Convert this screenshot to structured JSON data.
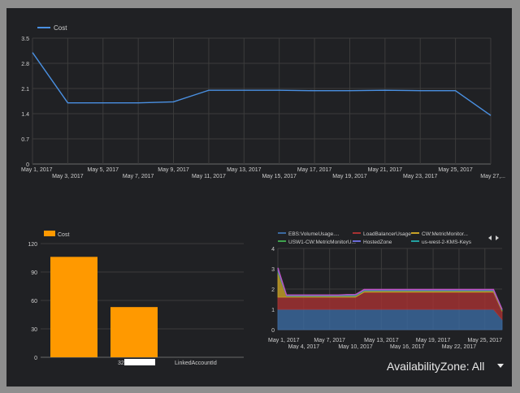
{
  "chart_data": [
    {
      "type": "line",
      "series": [
        {
          "name": "Cost",
          "color": "#4a90e2",
          "x": [
            1,
            3,
            5,
            7,
            9,
            11,
            13,
            15,
            17,
            19,
            21,
            23,
            25,
            27
          ],
          "y": [
            3.1,
            1.7,
            1.7,
            1.7,
            1.73,
            2.05,
            2.05,
            2.05,
            2.04,
            2.04,
            2.05,
            2.04,
            2.04,
            1.35
          ]
        }
      ],
      "x_tick_labels": [
        {
          "x": 1,
          "label": "May 1, 2017"
        },
        {
          "x": 3,
          "label": "May 3, 2017"
        },
        {
          "x": 5,
          "label": "May 5, 2017"
        },
        {
          "x": 7,
          "label": "May 7, 2017"
        },
        {
          "x": 9,
          "label": "May 9, 2017"
        },
        {
          "x": 11,
          "label": "May 11, 2017"
        },
        {
          "x": 13,
          "label": "May 13, 2017"
        },
        {
          "x": 15,
          "label": "May 15, 2017"
        },
        {
          "x": 17,
          "label": "May 17, 2017"
        },
        {
          "x": 19,
          "label": "May 19, 2017"
        },
        {
          "x": 21,
          "label": "May 21, 2017"
        },
        {
          "x": 23,
          "label": "May 23, 2017"
        },
        {
          "x": 25,
          "label": "May 25, 2017"
        },
        {
          "x": 27,
          "label": "May 27,..."
        }
      ],
      "y_ticks": [
        "0",
        "0.7",
        "1.4",
        "2.1",
        "2.8",
        "3.5"
      ],
      "y_tick_values": [
        0,
        0.7,
        1.4,
        2.1,
        2.8,
        3.5
      ],
      "xlim": [
        1,
        27
      ],
      "ylim": [
        0,
        3.5
      ],
      "grid": true,
      "legend": "top-left"
    },
    {
      "type": "bar",
      "categories": [
        "32",
        "LinkedAccountId"
      ],
      "series": [
        {
          "name": "Cost",
          "color": "#ff9900",
          "values": [
            106,
            53
          ]
        }
      ],
      "y_ticks": [
        "0",
        "30",
        "60",
        "90",
        "120"
      ],
      "y_tick_values": [
        0,
        30,
        60,
        90,
        120
      ],
      "ylim": [
        0,
        120
      ],
      "grid": true,
      "legend": "top-left"
    },
    {
      "type": "area",
      "stacked": true,
      "x": [
        1,
        2,
        3,
        4,
        5,
        6,
        7,
        8,
        9,
        10,
        11,
        12,
        13,
        14,
        15,
        16,
        17,
        18,
        19,
        20,
        21,
        22,
        23,
        24,
        25,
        26,
        27
      ],
      "series": [
        {
          "name": "EBS:VolumeUsage....",
          "color": "#3b6aa0",
          "values": [
            1,
            1,
            1,
            1,
            1,
            1,
            1,
            1,
            1,
            1,
            1,
            1,
            1,
            1,
            1,
            1,
            1,
            1,
            1,
            1,
            1,
            1,
            1,
            1,
            1,
            1,
            0.5
          ]
        },
        {
          "name": "LoadBalancerUsage",
          "color": "#a83232",
          "values": [
            0.6,
            0.6,
            0.6,
            0.6,
            0.6,
            0.6,
            0.6,
            0.6,
            0.6,
            0.6,
            0.85,
            0.85,
            0.85,
            0.85,
            0.85,
            0.85,
            0.85,
            0.85,
            0.85,
            0.85,
            0.85,
            0.85,
            0.85,
            0.85,
            0.85,
            0.85,
            0.4
          ]
        },
        {
          "name": "CW:MetricMonitor...",
          "color": "#c9a227",
          "values": [
            1.2,
            0.05,
            0.05,
            0.05,
            0.05,
            0.05,
            0.05,
            0.05,
            0.05,
            0.05,
            0.05,
            0.05,
            0.05,
            0.05,
            0.05,
            0.05,
            0.05,
            0.05,
            0.05,
            0.05,
            0.05,
            0.05,
            0.05,
            0.05,
            0.05,
            0.05,
            0.04
          ]
        },
        {
          "name": "USW1-CW:MetricMonitorU...",
          "color": "#3fa34d",
          "values": [
            0.1,
            0.02,
            0.02,
            0.02,
            0.02,
            0.02,
            0.02,
            0.02,
            0.03,
            0.03,
            0.03,
            0.03,
            0.03,
            0.03,
            0.03,
            0.03,
            0.03,
            0.03,
            0.03,
            0.03,
            0.03,
            0.03,
            0.03,
            0.03,
            0.03,
            0.03,
            0.02
          ]
        },
        {
          "name": "HostedZone",
          "color": "#6a6ad6",
          "values": [
            0.1,
            0.02,
            0.02,
            0.02,
            0.02,
            0.02,
            0.02,
            0.02,
            0.03,
            0.03,
            0.03,
            0.03,
            0.03,
            0.03,
            0.03,
            0.03,
            0.03,
            0.03,
            0.03,
            0.03,
            0.03,
            0.03,
            0.03,
            0.03,
            0.03,
            0.03,
            0.02
          ]
        },
        {
          "name": "us-west-2-KMS-Keys",
          "color": "#23a0a0",
          "values": [
            0.05,
            0.02,
            0.02,
            0.02,
            0.02,
            0.02,
            0.02,
            0.02,
            0.02,
            0.02,
            0.02,
            0.02,
            0.02,
            0.02,
            0.02,
            0.02,
            0.02,
            0.02,
            0.02,
            0.02,
            0.02,
            0.02,
            0.02,
            0.02,
            0.02,
            0.02,
            0.02
          ]
        }
      ],
      "top_line_color": "#c052c0",
      "x_tick_labels": [
        {
          "x": 1,
          "label": "May 1, 2017"
        },
        {
          "x": 4,
          "label": "May 4, 2017"
        },
        {
          "x": 7,
          "label": "May 7, 2017"
        },
        {
          "x": 10,
          "label": "May 10, 2017"
        },
        {
          "x": 13,
          "label": "May 13, 2017"
        },
        {
          "x": 16,
          "label": "May 16, 2017"
        },
        {
          "x": 19,
          "label": "May 19, 2017"
        },
        {
          "x": 22,
          "label": "May 22, 2017"
        },
        {
          "x": 25,
          "label": "May 25, 2017"
        }
      ],
      "y_ticks": [
        "0",
        "1",
        "2",
        "3",
        "4"
      ],
      "y_tick_values": [
        0,
        1,
        2,
        3,
        4
      ],
      "xlim": [
        1,
        27
      ],
      "ylim": [
        0,
        4
      ],
      "grid": true,
      "legend": "top"
    }
  ],
  "filter": {
    "label": "AvailabilityZone: All"
  }
}
